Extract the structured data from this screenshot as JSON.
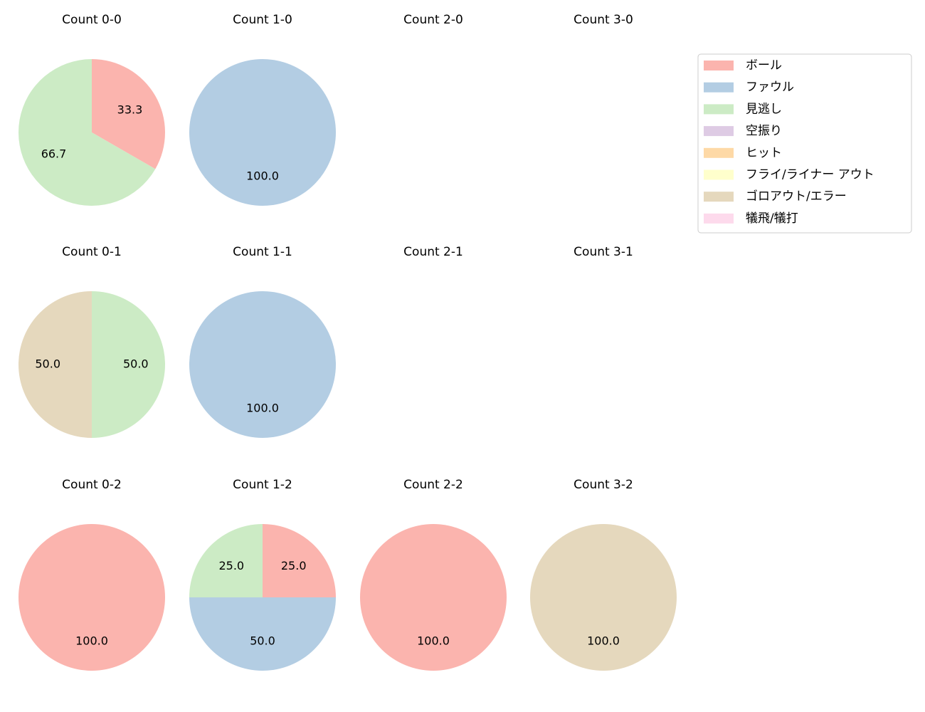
{
  "chart_data": [
    {
      "type": "pie",
      "title": "Count 0-0",
      "categories": [
        "ボール",
        "見逃し"
      ],
      "values": [
        33.3,
        66.7
      ],
      "value_labels": [
        "33.3",
        "66.7"
      ],
      "colors": [
        "#fbb4ae",
        "#ccebc5"
      ]
    },
    {
      "type": "pie",
      "title": "Count 1-0",
      "categories": [
        "ファウル"
      ],
      "values": [
        100
      ],
      "value_labels": [
        "100.0"
      ],
      "colors": [
        "#b3cde3"
      ]
    },
    {
      "type": "pie",
      "title": "Count 2-0"
    },
    {
      "type": "pie",
      "title": "Count 3-0"
    },
    {
      "type": "pie",
      "title": "Count 0-1",
      "categories": [
        "見逃し",
        "ゴロアウト/エラー"
      ],
      "values": [
        50,
        50
      ],
      "value_labels": [
        "50.0",
        "50.0"
      ],
      "colors": [
        "#ccebc5",
        "#e5d8bd"
      ]
    },
    {
      "type": "pie",
      "title": "Count 1-1",
      "categories": [
        "ファウル"
      ],
      "values": [
        100
      ],
      "value_labels": [
        "100.0"
      ],
      "colors": [
        "#b3cde3"
      ]
    },
    {
      "type": "pie",
      "title": "Count 2-1"
    },
    {
      "type": "pie",
      "title": "Count 3-1"
    },
    {
      "type": "pie",
      "title": "Count 0-2",
      "categories": [
        "ボール"
      ],
      "values": [
        100
      ],
      "value_labels": [
        "100.0"
      ],
      "colors": [
        "#fbb4ae"
      ]
    },
    {
      "type": "pie",
      "title": "Count 1-2",
      "categories": [
        "ボール",
        "ファウル",
        "見逃し"
      ],
      "values": [
        25,
        50,
        25
      ],
      "value_labels": [
        "25.0",
        "50.0",
        "25.0"
      ],
      "colors": [
        "#fbb4ae",
        "#b3cde3",
        "#ccebc5"
      ]
    },
    {
      "type": "pie",
      "title": "Count 2-2",
      "categories": [
        "ボール"
      ],
      "values": [
        100
      ],
      "value_labels": [
        "100.0"
      ],
      "colors": [
        "#fbb4ae"
      ]
    },
    {
      "type": "pie",
      "title": "Count 3-2",
      "categories": [
        "ゴロアウト/エラー"
      ],
      "values": [
        100
      ],
      "value_labels": [
        "100.0"
      ],
      "colors": [
        "#e5d8bd"
      ]
    }
  ],
  "legend": {
    "labels": [
      "ボール",
      "ファウル",
      "見逃し",
      "空振り",
      "ヒット",
      "フライ/ライナー アウト",
      "ゴロアウト/エラー",
      "犠飛/犠打"
    ],
    "colors": [
      "#fbb4ae",
      "#b3cde3",
      "#ccebc5",
      "#decbe4",
      "#fed9a6",
      "#ffffcc",
      "#e5d8bd",
      "#fddaec"
    ]
  }
}
